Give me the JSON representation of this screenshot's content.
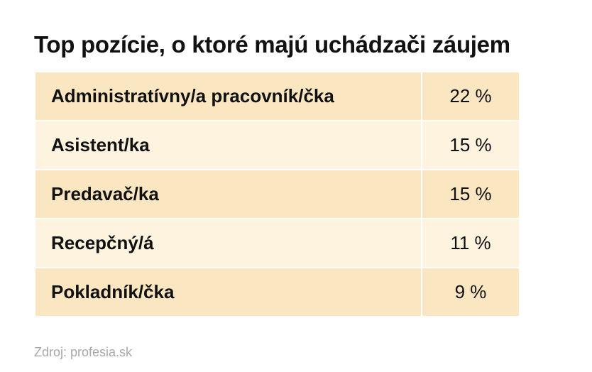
{
  "header": {
    "title": "Top pozície, o ktoré majú uchádzači záujem"
  },
  "table": {
    "rows": [
      [
        "Administratívny/a pracovník/čka",
        "22 %"
      ],
      [
        "Asistent/ka",
        "15 %"
      ],
      [
        "Predavač/ka",
        "15 %"
      ],
      [
        "Recepčný/á",
        "11 %"
      ],
      [
        "Pokladník/čka",
        "9 %"
      ]
    ]
  },
  "footer": {
    "source": "Zdroj: profesia.sk"
  }
}
